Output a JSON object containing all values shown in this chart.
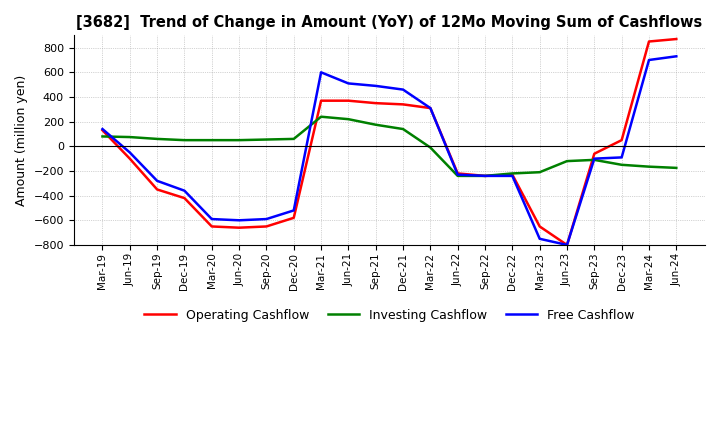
{
  "title": "[3682]  Trend of Change in Amount (YoY) of 12Mo Moving Sum of Cashflows",
  "ylabel": "Amount (million yen)",
  "ylim": [
    -800,
    900
  ],
  "yticks": [
    -800,
    -600,
    -400,
    -200,
    0,
    200,
    400,
    600,
    800
  ],
  "x_labels": [
    "Mar-19",
    "Jun-19",
    "Sep-19",
    "Dec-19",
    "Mar-20",
    "Jun-20",
    "Sep-20",
    "Dec-20",
    "Mar-21",
    "Jun-21",
    "Sep-21",
    "Dec-21",
    "Mar-22",
    "Jun-22",
    "Sep-22",
    "Dec-22",
    "Mar-23",
    "Jun-23",
    "Sep-23",
    "Dec-23",
    "Mar-24",
    "Jun-24"
  ],
  "operating": [
    130,
    -100,
    -350,
    -420,
    -650,
    -660,
    -650,
    -580,
    370,
    370,
    350,
    340,
    310,
    -220,
    -240,
    -230,
    -650,
    -800,
    -60,
    50,
    850,
    870
  ],
  "investing": [
    80,
    75,
    60,
    50,
    50,
    50,
    55,
    60,
    240,
    220,
    175,
    140,
    -10,
    -240,
    -240,
    -220,
    -210,
    -120,
    -110,
    -150,
    -165,
    -175
  ],
  "free": [
    140,
    -50,
    -280,
    -360,
    -590,
    -600,
    -590,
    -520,
    600,
    510,
    490,
    460,
    310,
    -230,
    -240,
    -240,
    -750,
    -800,
    -100,
    -90,
    700,
    730
  ],
  "operating_color": "#ff0000",
  "investing_color": "#008000",
  "free_color": "#0000ff",
  "bg_color": "#ffffff",
  "grid_color": "#aaaaaa"
}
